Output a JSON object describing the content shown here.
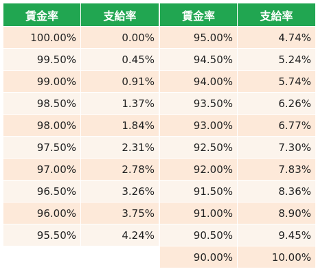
{
  "headers": {
    "wage_rate": "賃金率",
    "payment_rate": "支給率"
  },
  "left_rows": [
    {
      "wage": "100.00%",
      "pay": "0.00%"
    },
    {
      "wage": "99.50%",
      "pay": "0.45%"
    },
    {
      "wage": "99.00%",
      "pay": "0.91%"
    },
    {
      "wage": "98.50%",
      "pay": "1.37%"
    },
    {
      "wage": "98.00%",
      "pay": "1.84%"
    },
    {
      "wage": "97.50%",
      "pay": "2.31%"
    },
    {
      "wage": "97.00%",
      "pay": "2.78%"
    },
    {
      "wage": "96.50%",
      "pay": "3.26%"
    },
    {
      "wage": "96.00%",
      "pay": "3.75%"
    },
    {
      "wage": "95.50%",
      "pay": "4.24%"
    }
  ],
  "right_rows": [
    {
      "wage": "95.00%",
      "pay": "4.74%"
    },
    {
      "wage": "94.50%",
      "pay": "5.24%"
    },
    {
      "wage": "94.00%",
      "pay": "5.74%"
    },
    {
      "wage": "93.50%",
      "pay": "6.26%"
    },
    {
      "wage": "93.00%",
      "pay": "6.77%"
    },
    {
      "wage": "92.50%",
      "pay": "7.30%"
    },
    {
      "wage": "92.00%",
      "pay": "7.83%"
    },
    {
      "wage": "91.50%",
      "pay": "8.36%"
    },
    {
      "wage": "91.00%",
      "pay": "8.90%"
    },
    {
      "wage": "90.50%",
      "pay": "9.45%"
    },
    {
      "wage": "90.00%",
      "pay": "10.00%"
    }
  ],
  "colors": {
    "header_bg": "#21a651",
    "row_odd": "#fde9d9",
    "row_even": "#fcf4ec"
  }
}
